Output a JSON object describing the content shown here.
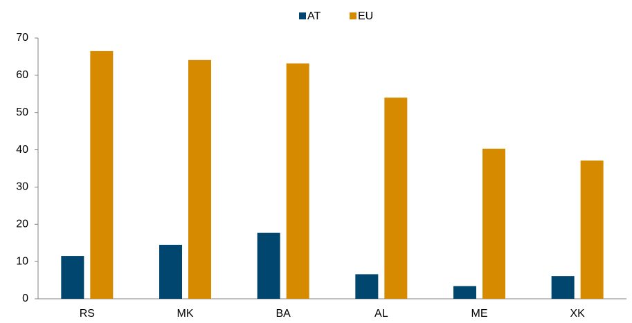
{
  "chart_data": {
    "type": "bar",
    "categories": [
      "RS",
      "MK",
      "BA",
      "AL",
      "ME",
      "XK"
    ],
    "series": [
      {
        "name": "AT",
        "color": "#00466e",
        "values": [
          11.5,
          14.5,
          17.7,
          6.6,
          3.4,
          6.1
        ]
      },
      {
        "name": "EU",
        "color": "#d68a00",
        "values": [
          66.5,
          64.1,
          63.2,
          54.0,
          40.3,
          37.1
        ]
      }
    ],
    "ylim": [
      0,
      70
    ],
    "yticks": [
      0,
      10,
      20,
      30,
      40,
      50,
      60,
      70
    ],
    "grid": false,
    "legend": "top"
  }
}
